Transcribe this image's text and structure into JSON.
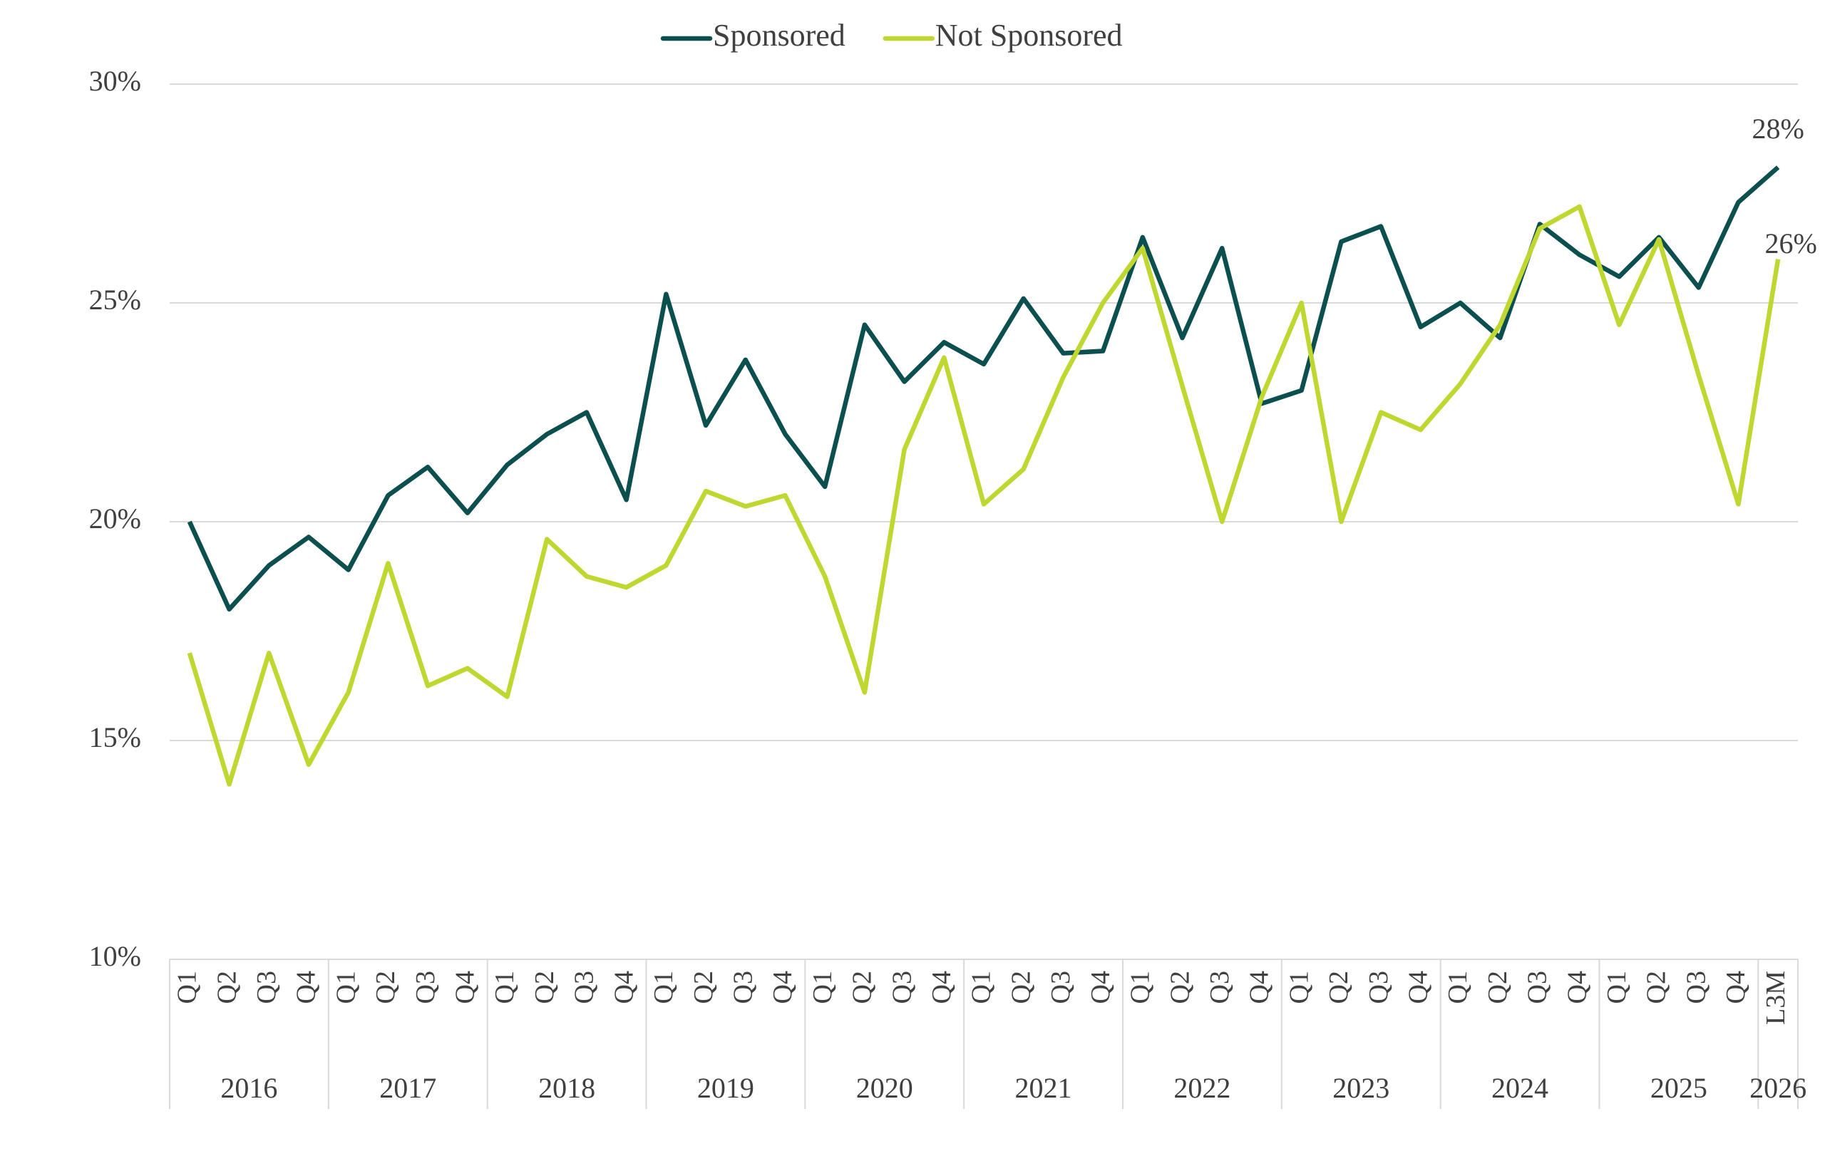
{
  "chart_data": {
    "type": "line",
    "categories": [
      "Q1",
      "Q2",
      "Q3",
      "Q4",
      "Q1",
      "Q2",
      "Q3",
      "Q4",
      "Q1",
      "Q2",
      "Q3",
      "Q4",
      "Q1",
      "Q2",
      "Q3",
      "Q4",
      "Q1",
      "Q2",
      "Q3",
      "Q4",
      "Q1",
      "Q2",
      "Q3",
      "Q4",
      "Q1",
      "Q2",
      "Q3",
      "Q4",
      "Q1",
      "Q2",
      "Q3",
      "Q4",
      "Q1",
      "Q2",
      "Q3",
      "Q4",
      "Q1",
      "Q2",
      "Q3",
      "Q4",
      "L3M"
    ],
    "groups": [
      {
        "label": "2016",
        "size": 4
      },
      {
        "label": "2017",
        "size": 4
      },
      {
        "label": "2018",
        "size": 4
      },
      {
        "label": "2019",
        "size": 4
      },
      {
        "label": "2020",
        "size": 4
      },
      {
        "label": "2021",
        "size": 4
      },
      {
        "label": "2022",
        "size": 4
      },
      {
        "label": "2023",
        "size": 4
      },
      {
        "label": "2024",
        "size": 4
      },
      {
        "label": "2025",
        "size": 4
      },
      {
        "label": "2026",
        "size": 1
      }
    ],
    "series": [
      {
        "name": "Sponsored",
        "color": "#0b4f4f",
        "values": [
          20.0,
          18.0,
          19.0,
          19.65,
          18.9,
          20.6,
          21.25,
          20.2,
          21.3,
          22.0,
          22.5,
          20.5,
          25.2,
          22.2,
          23.7,
          22.0,
          20.8,
          24.5,
          23.2,
          24.1,
          23.6,
          25.1,
          23.85,
          23.9,
          26.5,
          24.2,
          26.25,
          22.7,
          23.0,
          26.4,
          26.75,
          24.45,
          25.0,
          24.2,
          26.8,
          26.1,
          25.6,
          26.5,
          25.35,
          27.3,
          28.1
        ],
        "value_labels": [
          null,
          null,
          null,
          null,
          null,
          null,
          null,
          null,
          null,
          null,
          null,
          null,
          null,
          null,
          null,
          null,
          null,
          null,
          null,
          null,
          null,
          null,
          null,
          null,
          null,
          null,
          null,
          null,
          null,
          null,
          null,
          null,
          null,
          null,
          null,
          null,
          null,
          null,
          null,
          null,
          "28%"
        ]
      },
      {
        "name": "Not Sponsored",
        "color": "#bfd730",
        "values": [
          17.0,
          14.0,
          17.0,
          14.45,
          16.1,
          19.05,
          16.25,
          16.65,
          16.0,
          19.6,
          18.75,
          18.5,
          19.0,
          20.7,
          20.35,
          20.6,
          18.75,
          16.1,
          21.65,
          23.75,
          20.4,
          21.2,
          23.3,
          25.0,
          26.25,
          23.1,
          20.0,
          22.85,
          25.0,
          20.0,
          22.5,
          22.1,
          23.15,
          24.5,
          26.7,
          27.2,
          24.5,
          26.45,
          23.35,
          20.4,
          26.0
        ],
        "value_labels": [
          null,
          null,
          null,
          null,
          null,
          null,
          null,
          null,
          null,
          null,
          null,
          null,
          null,
          null,
          null,
          null,
          null,
          null,
          null,
          null,
          null,
          null,
          null,
          null,
          null,
          null,
          null,
          null,
          null,
          null,
          null,
          null,
          null,
          null,
          null,
          null,
          null,
          null,
          null,
          null,
          "26%"
        ]
      }
    ],
    "ylim": [
      10,
      30
    ],
    "yticks": [
      {
        "value": 10,
        "label": "10%"
      },
      {
        "value": 15,
        "label": "15%"
      },
      {
        "value": 20,
        "label": "20%"
      },
      {
        "value": 25,
        "label": "25%"
      },
      {
        "value": 30,
        "label": "30%"
      }
    ],
    "grid": true,
    "legend": "top"
  }
}
